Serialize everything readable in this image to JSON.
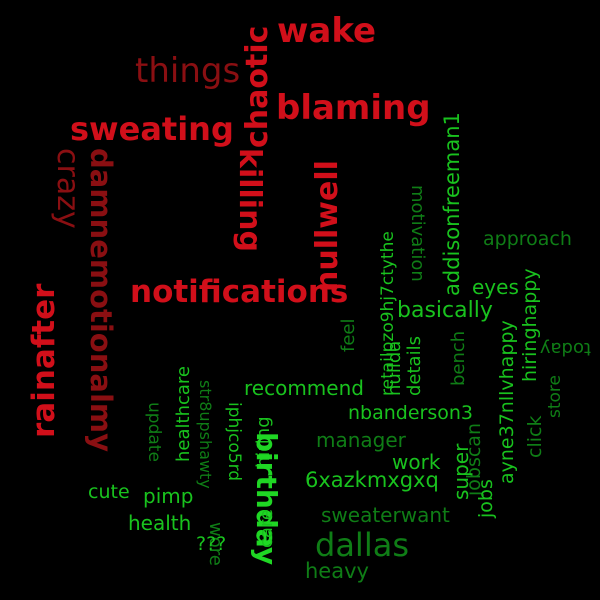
{
  "palette": {
    "background": "#000000",
    "red": "#d10f1a",
    "dark_red": "#8a0f12",
    "green": "#19c21e",
    "dark_green": "#0f7d16",
    "bright_green": "#1fd624"
  },
  "words": [
    {
      "text": "wake",
      "color": "#d10f1a",
      "rotation": "horizontal"
    },
    {
      "text": "chaotic",
      "color": "#d10f1a",
      "rotation": "vertical-up"
    },
    {
      "text": "things",
      "color": "#8a0f12",
      "rotation": "horizontal"
    },
    {
      "text": "blaming",
      "color": "#d10f1a",
      "rotation": "horizontal"
    },
    {
      "text": "sweating",
      "color": "#d10f1a",
      "rotation": "horizontal"
    },
    {
      "text": "killing",
      "color": "#d10f1a",
      "rotation": "vertical-down"
    },
    {
      "text": "crazy",
      "color": "#8a0f12",
      "rotation": "vertical-down"
    },
    {
      "text": "damnemotionalmy",
      "color": "#8a0f12",
      "rotation": "vertical-down"
    },
    {
      "text": "nullwell",
      "color": "#d10f1a",
      "rotation": "vertical-up"
    },
    {
      "text": "rainafter",
      "color": "#d10f1a",
      "rotation": "vertical-up"
    },
    {
      "text": "notifications",
      "color": "#d10f1a",
      "rotation": "horizontal"
    },
    {
      "text": "addisonfreeman1",
      "color": "#19c21e",
      "rotation": "vertical-up"
    },
    {
      "text": "motivation",
      "color": "#0f7d16",
      "rotation": "vertical-down"
    },
    {
      "text": "retailpzo9hj7ctythe",
      "color": "#19c21e",
      "rotation": "vertical-up"
    },
    {
      "text": "approach",
      "color": "#0f7d16",
      "rotation": "horizontal"
    },
    {
      "text": "eyes",
      "color": "#19c21e",
      "rotation": "horizontal"
    },
    {
      "text": "hiringhappy",
      "color": "#19c21e",
      "rotation": "vertical-up"
    },
    {
      "text": "today",
      "color": "#0f7d16",
      "rotation": "upside-down"
    },
    {
      "text": "basically",
      "color": "#19c21e",
      "rotation": "horizontal"
    },
    {
      "text": "nullda",
      "color": "#19c21e",
      "rotation": "vertical-up"
    },
    {
      "text": "details",
      "color": "#19c21e",
      "rotation": "vertical-up"
    },
    {
      "text": "feel",
      "color": "#0f7d16",
      "rotation": "vertical-up"
    },
    {
      "text": "bench",
      "color": "#0f7d16",
      "rotation": "vertical-up"
    },
    {
      "text": "ayne37nllvhappy",
      "color": "#19c21e",
      "rotation": "vertical-up"
    },
    {
      "text": "click",
      "color": "#0f7d16",
      "rotation": "vertical-up"
    },
    {
      "text": "store",
      "color": "#0f7d16",
      "rotation": "vertical-up"
    },
    {
      "text": "healthcare",
      "color": "#19c21e",
      "rotation": "vertical-up"
    },
    {
      "text": "recommend",
      "color": "#19c21e",
      "rotation": "horizontal"
    },
    {
      "text": "update",
      "color": "#0f7d16",
      "rotation": "vertical-down"
    },
    {
      "text": "str8upshawty",
      "color": "#0f7d16",
      "rotation": "vertical-down"
    },
    {
      "text": "iphjco5rd",
      "color": "#19c21e",
      "rotation": "vertical-down"
    },
    {
      "text": "hiring",
      "color": "#19c21e",
      "rotation": "vertical-up"
    },
    {
      "text": "nbanderson3",
      "color": "#19c21e",
      "rotation": "horizontal"
    },
    {
      "text": "birthday",
      "color": "#1fd624",
      "rotation": "vertical-down"
    },
    {
      "text": "manager",
      "color": "#0f7d16",
      "rotation": "horizontal"
    },
    {
      "text": "jobscan",
      "color": "#0f7d16",
      "rotation": "vertical-up"
    },
    {
      "text": "work",
      "color": "#19c21e",
      "rotation": "horizontal"
    },
    {
      "text": "super",
      "color": "#19c21e",
      "rotation": "vertical-up"
    },
    {
      "text": "6xazkmxgxq",
      "color": "#19c21e",
      "rotation": "horizontal"
    },
    {
      "text": "jobs",
      "color": "#19c21e",
      "rotation": "vertical-up"
    },
    {
      "text": "cute",
      "color": "#19c21e",
      "rotation": "horizontal"
    },
    {
      "text": "pimp",
      "color": "#19c21e",
      "rotation": "horizontal"
    },
    {
      "text": "health",
      "color": "#19c21e",
      "rotation": "horizontal"
    },
    {
      "text": "care",
      "color": "#19c21e",
      "rotation": "vertical-up"
    },
    {
      "text": "sweaterwant",
      "color": "#0f7d16",
      "rotation": "horizontal"
    },
    {
      "text": "dallas",
      "color": "#0f7d16",
      "rotation": "horizontal"
    },
    {
      "text": "wore",
      "color": "#0f7d16",
      "rotation": "vertical-down"
    },
    {
      "text": "heavy",
      "color": "#0f7d16",
      "rotation": "horizontal"
    },
    {
      "text": "???",
      "color": "#19c21e",
      "rotation": "horizontal"
    }
  ]
}
